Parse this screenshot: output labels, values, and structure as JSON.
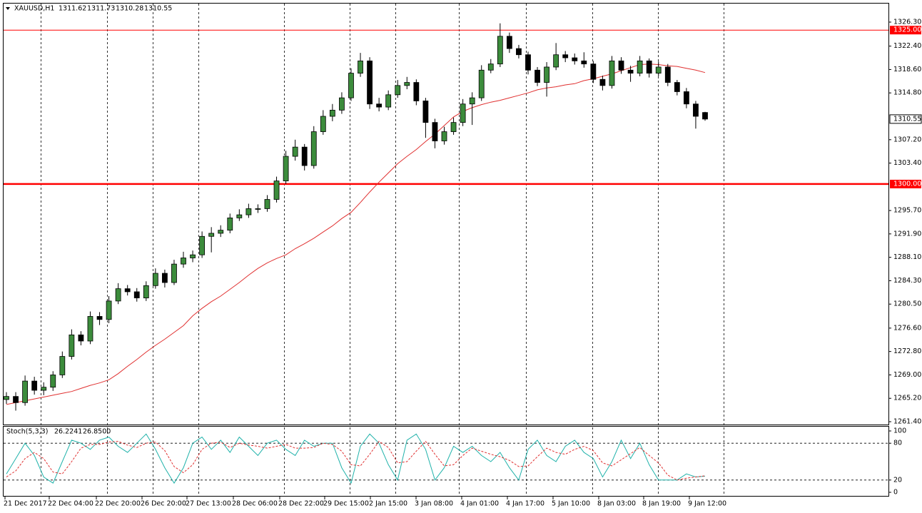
{
  "chart_data": {
    "type": "candlestick",
    "symbol": "XAUUSD,H1",
    "ohlc": [
      1311.62,
      1311.73,
      1310.28,
      1310.55
    ],
    "up_color": "#3c8c3c",
    "down_color": "#000000",
    "ylim": [
      1260.94,
      1329.31
    ],
    "yticks": [
      {
        "value": 1326.3,
        "label": "1326.30"
      },
      {
        "value": 1322.4,
        "label": "1322.40"
      },
      {
        "value": 1318.6,
        "label": "1318.60"
      },
      {
        "value": 1314.8,
        "label": "1314.80"
      },
      {
        "value": 1307.2,
        "label": "1307.20"
      },
      {
        "value": 1303.4,
        "label": "1303.40"
      },
      {
        "value": 1295.7,
        "label": "1295.70"
      },
      {
        "value": 1291.9,
        "label": "1291.90"
      },
      {
        "value": 1288.1,
        "label": "1288.10"
      },
      {
        "value": 1284.3,
        "label": "1284.30"
      },
      {
        "value": 1280.5,
        "label": "1280.50"
      },
      {
        "value": 1276.6,
        "label": "1276.60"
      },
      {
        "value": 1272.8,
        "label": "1272.80"
      },
      {
        "value": 1269,
        "label": "1269.00"
      },
      {
        "value": 1265.2,
        "label": "1265.20"
      },
      {
        "value": 1261.4,
        "label": "1261.40"
      }
    ],
    "hlines": [
      {
        "value": 1325,
        "label": "1325.00"
      },
      {
        "value": 1300,
        "label": "1300.00"
      }
    ],
    "hline_color": "#ff0000",
    "x_labels": [
      "21 Dec 2017",
      "22 Dec 04:00",
      "22 Dec 20:00",
      "26 Dec 20:00",
      "27 Dec 13:00",
      "28 Dec 06:00",
      "28 Dec 22:00",
      "29 Dec 15:00",
      "2 Jan 15:00",
      "3 Jan 08:00",
      "4 Jan 01:00",
      "4 Jan 17:00",
      "5 Jan 10:00",
      "8 Jan 03:00",
      "8 Jan 19:00",
      "9 Jan 12:00"
    ],
    "candles": [
      [
        1265,
        1266.2,
        1264.3,
        1265.5
      ],
      [
        1265.5,
        1266.2,
        1263.2,
        1264.5
      ],
      [
        1264.5,
        1268.9,
        1264,
        1268
      ],
      [
        1268,
        1268.7,
        1265.8,
        1266.5
      ],
      [
        1266.5,
        1267.8,
        1265.7,
        1267
      ],
      [
        1267,
        1269.6,
        1266.4,
        1269
      ],
      [
        1269,
        1272.8,
        1268.5,
        1272
      ],
      [
        1272,
        1276.4,
        1271.5,
        1275.5
      ],
      [
        1275.5,
        1276.1,
        1273.8,
        1274.5
      ],
      [
        1274.5,
        1279.3,
        1274,
        1278.5
      ],
      [
        1278.5,
        1279.2,
        1277.1,
        1278
      ],
      [
        1278,
        1281.8,
        1277.4,
        1281
      ],
      [
        1281,
        1283.9,
        1280.5,
        1283
      ],
      [
        1283,
        1283.6,
        1281.9,
        1282.5
      ],
      [
        1282.5,
        1283.1,
        1280.9,
        1281.5
      ],
      [
        1281.5,
        1284.2,
        1281,
        1283.5
      ],
      [
        1283.5,
        1286.3,
        1283,
        1285.5
      ],
      [
        1285.5,
        1286.1,
        1283.2,
        1284
      ],
      [
        1284,
        1287.7,
        1283.6,
        1287
      ],
      [
        1287,
        1289,
        1286.4,
        1288
      ],
      [
        1288,
        1289.2,
        1287.3,
        1288.5
      ],
      [
        1288.5,
        1292.3,
        1288,
        1291.5
      ],
      [
        1291.5,
        1293,
        1288.9,
        1292
      ],
      [
        1292,
        1293.3,
        1291.4,
        1292.5
      ],
      [
        1292.5,
        1295.2,
        1292,
        1294.5
      ],
      [
        1294.5,
        1295.9,
        1294,
        1295
      ],
      [
        1295,
        1296.8,
        1294.5,
        1296
      ],
      [
        1296,
        1296.7,
        1295.3,
        1296
      ],
      [
        1296,
        1298.2,
        1295.5,
        1297.5
      ],
      [
        1297.5,
        1301.2,
        1297,
        1300.5
      ],
      [
        1300.5,
        1305.4,
        1300,
        1304.5
      ],
      [
        1304.5,
        1307.2,
        1303.8,
        1306
      ],
      [
        1306,
        1306.5,
        1302.2,
        1303
      ],
      [
        1303,
        1309.4,
        1302.5,
        1308.5
      ],
      [
        1308.5,
        1312,
        1308,
        1311
      ],
      [
        1311,
        1313,
        1310.2,
        1312
      ],
      [
        1312,
        1314.9,
        1311.4,
        1314
      ],
      [
        1314,
        1318.8,
        1313.5,
        1318
      ],
      [
        1318,
        1321.3,
        1317.4,
        1320
      ],
      [
        1320,
        1320.6,
        1312.2,
        1313
      ],
      [
        1313,
        1314,
        1311.8,
        1312.5
      ],
      [
        1312.5,
        1315.2,
        1312,
        1314.5
      ],
      [
        1314.5,
        1316.9,
        1314,
        1316
      ],
      [
        1316,
        1317.4,
        1315.4,
        1316.5
      ],
      [
        1316.5,
        1317,
        1312.8,
        1313.5
      ],
      [
        1313.5,
        1314,
        1307.5,
        1310
      ],
      [
        1310,
        1310.6,
        1305.8,
        1307
      ],
      [
        1307,
        1309.3,
        1306.4,
        1308.5
      ],
      [
        1308.5,
        1310.8,
        1308,
        1310
      ],
      [
        1310,
        1313.8,
        1309.4,
        1313
      ],
      [
        1313,
        1314.9,
        1309.6,
        1314
      ],
      [
        1314,
        1319.3,
        1313.5,
        1318.5
      ],
      [
        1318.5,
        1320.3,
        1318,
        1319.5
      ],
      [
        1319.5,
        1326.1,
        1319,
        1324
      ],
      [
        1324,
        1324.6,
        1321.3,
        1322
      ],
      [
        1322,
        1322.6,
        1320.4,
        1321
      ],
      [
        1321,
        1321.5,
        1317.8,
        1318.5
      ],
      [
        1318.5,
        1319,
        1315.9,
        1316.5
      ],
      [
        1316.5,
        1319.8,
        1314.2,
        1319
      ],
      [
        1319,
        1322.9,
        1318.5,
        1321
      ],
      [
        1321,
        1321.6,
        1319.8,
        1320.5
      ],
      [
        1320.5,
        1321.2,
        1319.4,
        1320
      ],
      [
        1320,
        1321.4,
        1318.9,
        1319.5
      ],
      [
        1319.5,
        1320,
        1316.4,
        1317
      ],
      [
        1317,
        1317.6,
        1315.2,
        1316
      ],
      [
        1316,
        1320.8,
        1315.5,
        1320
      ],
      [
        1320,
        1320.6,
        1317.9,
        1318.5
      ],
      [
        1318.5,
        1319.2,
        1316.6,
        1318
      ],
      [
        1318,
        1320.8,
        1317.5,
        1320
      ],
      [
        1320,
        1320.4,
        1317.3,
        1318
      ],
      [
        1318,
        1319.9,
        1317.5,
        1319
      ],
      [
        1319,
        1319.5,
        1315.9,
        1316.5
      ],
      [
        1316.5,
        1316.9,
        1314.4,
        1315
      ],
      [
        1315,
        1315.6,
        1312.3,
        1313
      ],
      [
        1313,
        1313.5,
        1309,
        1311
      ],
      [
        1311.62,
        1311.73,
        1310.28,
        1310.55
      ]
    ],
    "ma": {
      "color": "#e03030",
      "values": [
        1264.2,
        1264.5,
        1264.8,
        1265.1,
        1265.4,
        1265.7,
        1266,
        1266.3,
        1266.8,
        1267.3,
        1267.7,
        1268.2,
        1269.2,
        1270.4,
        1271.5,
        1272.7,
        1273.8,
        1274.8,
        1275.9,
        1277,
        1278.6,
        1279.8,
        1280.9,
        1281.8,
        1282.9,
        1284,
        1285.2,
        1286.3,
        1287.2,
        1287.9,
        1288.5,
        1289.5,
        1290.3,
        1291.2,
        1292.2,
        1293.2,
        1294.4,
        1295.4,
        1297,
        1298.7,
        1300.3,
        1301.8,
        1303.3,
        1304.5,
        1305.6,
        1306.9,
        1308.1,
        1309.5,
        1310.9,
        1311.8,
        1312.4,
        1312.9,
        1313.3,
        1313.6,
        1314,
        1314.4,
        1314.8,
        1315.3,
        1315.6,
        1315.8,
        1316.1,
        1316.3,
        1316.8,
        1317.1,
        1317.5,
        1317.9,
        1318.4,
        1318.9,
        1319.4,
        1319.5,
        1319.4,
        1319.2,
        1319.1,
        1318.8,
        1318.5,
        1318.1
      ]
    },
    "stoch": {
      "label": "Stoch(5,3,3)",
      "readout": [
        "26.2241",
        "26.8500"
      ],
      "ylim": [
        0,
        100
      ],
      "yticks": [
        100,
        80,
        20,
        0
      ],
      "levels": [
        80,
        20
      ],
      "series": [
        {
          "color": "#20b2aa",
          "values": [
            30,
            55,
            80,
            60,
            25,
            15,
            50,
            85,
            80,
            70,
            85,
            90,
            75,
            65,
            80,
            95,
            70,
            40,
            15,
            40,
            80,
            90,
            70,
            85,
            65,
            90,
            75,
            60,
            80,
            85,
            70,
            60,
            85,
            75,
            80,
            80,
            40,
            15,
            75,
            95,
            80,
            45,
            20,
            85,
            95,
            70,
            20,
            40,
            75,
            65,
            75,
            60,
            50,
            65,
            40,
            20,
            70,
            85,
            60,
            50,
            75,
            85,
            65,
            55,
            25,
            50,
            85,
            55,
            80,
            45,
            20,
            20,
            20,
            30,
            25,
            26.2241
          ]
        },
        {
          "color": "#e03030",
          "dashed": true,
          "values": [
            25,
            35,
            55,
            65,
            55,
            33,
            30,
            50,
            72,
            78,
            78,
            82,
            83,
            77,
            73,
            80,
            82,
            68,
            42,
            32,
            45,
            70,
            80,
            82,
            73,
            80,
            77,
            75,
            72,
            75,
            78,
            72,
            72,
            73,
            80,
            78,
            67,
            45,
            43,
            62,
            83,
            73,
            48,
            50,
            67,
            83,
            62,
            43,
            45,
            60,
            72,
            67,
            62,
            58,
            52,
            42,
            43,
            58,
            72,
            65,
            62,
            70,
            75,
            68,
            48,
            43,
            53,
            63,
            73,
            60,
            48,
            28,
            20,
            23,
            25,
            26.85
          ]
        }
      ]
    }
  }
}
